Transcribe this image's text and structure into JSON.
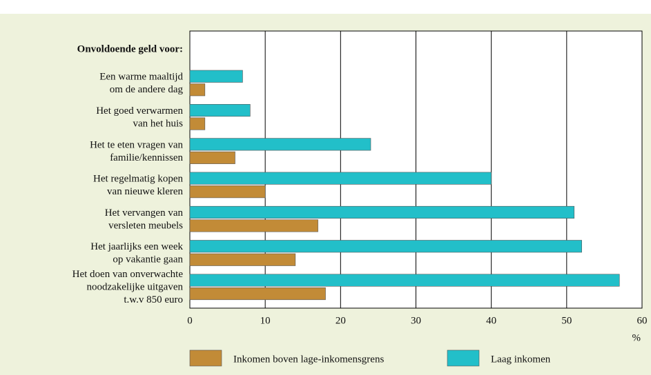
{
  "chart_data": {
    "type": "barh",
    "annotation": "Onvoldoende geld voor:",
    "categories": [
      [
        "Een warme maaltijd",
        "om de andere dag"
      ],
      [
        "Het goed verwarmen",
        "van het huis"
      ],
      [
        "Het te eten vragen van",
        "familie/kennissen"
      ],
      [
        "Het regelmatig kopen",
        "van nieuwe kleren"
      ],
      [
        "Het vervangen van",
        "versleten meubels"
      ],
      [
        "Het jaarlijks een week",
        "op vakantie gaan"
      ],
      [
        "Het doen van onverwachte",
        "noodzakelijke uitgaven",
        "t.w.v 850 euro"
      ]
    ],
    "series": [
      {
        "name": "Inkomen boven lage-inkomensgrens",
        "color": "#c28b37",
        "values": [
          2,
          2,
          6,
          10,
          17,
          14,
          18
        ]
      },
      {
        "name": "Laag inkomen",
        "color": "#22bfc9",
        "values": [
          7,
          8,
          24,
          40,
          51,
          52,
          57
        ]
      }
    ],
    "xlabel": "%",
    "xlim": [
      0,
      60
    ],
    "xticks": [
      0,
      10,
      20,
      30,
      40,
      50,
      60
    ],
    "grid": true
  }
}
